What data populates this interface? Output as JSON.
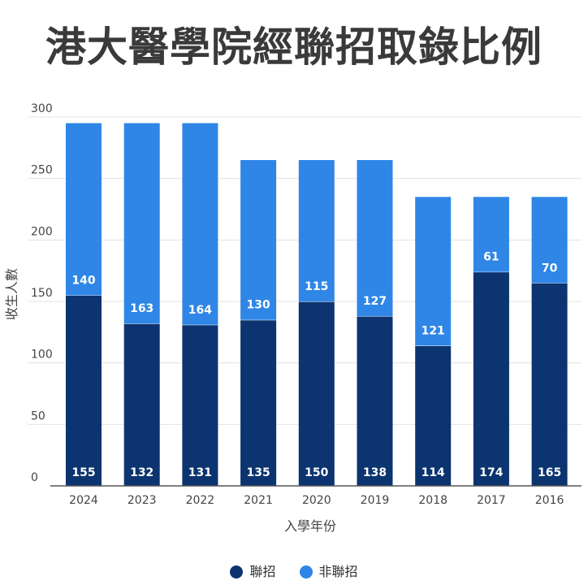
{
  "chart_data": {
    "type": "bar",
    "stacked": true,
    "title": "港大醫學院經聯招取錄比例",
    "xlabel": "入學年份",
    "ylabel": "收生人數",
    "categories": [
      "2024",
      "2023",
      "2022",
      "2021",
      "2020",
      "2019",
      "2018",
      "2017",
      "2016"
    ],
    "series": [
      {
        "name": "聯招",
        "color": "#0b3470",
        "values": [
          155,
          132,
          131,
          135,
          150,
          138,
          114,
          174,
          165
        ]
      },
      {
        "name": "非聯招",
        "color": "#2f86e6",
        "values": [
          140,
          163,
          164,
          130,
          115,
          127,
          121,
          61,
          70
        ]
      }
    ],
    "ylim": [
      0,
      300
    ],
    "yticks": [
      0,
      50,
      100,
      150,
      200,
      250,
      300
    ],
    "grid": true,
    "legend": "bottom"
  }
}
